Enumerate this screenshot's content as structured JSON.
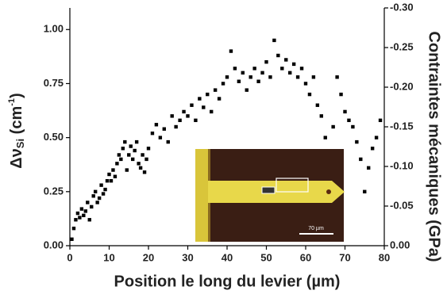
{
  "chart_data": {
    "type": "scatter",
    "x_label": "Position le long du levier (µm)",
    "y_label_parts": [
      "Δν",
      "Si",
      " (cm",
      "-1",
      ")"
    ],
    "y2_label": "Contraintes mécaniques (GPa)",
    "xlim": [
      0,
      80
    ],
    "xticks": [
      0,
      10,
      20,
      30,
      40,
      50,
      60,
      70,
      80
    ],
    "ylim": [
      0,
      1.1
    ],
    "yticks": [
      {
        "value": 0,
        "label": "0.00"
      },
      {
        "value": 0.25,
        "label": "0.25"
      },
      {
        "value": 0.5,
        "label": "0.50"
      },
      {
        "value": 0.75,
        "label": "0.75"
      },
      {
        "value": 1,
        "label": "1.00"
      }
    ],
    "y2lim": [
      0,
      -0.3
    ],
    "y2ticks": [
      {
        "value": 0,
        "label": "0.00"
      },
      {
        "value": -0.05,
        "label": "-0.05"
      },
      {
        "value": -0.1,
        "label": "-0.10"
      },
      {
        "value": -0.15,
        "label": "-0.15"
      },
      {
        "value": -0.2,
        "label": "-0.20"
      },
      {
        "value": -0.25,
        "label": "-0.25"
      },
      {
        "value": -0.3,
        "label": "-0.30"
      }
    ],
    "series": [
      {
        "color": "#000000",
        "x": [
          0.5,
          1,
          1.5,
          2,
          2.5,
          3,
          3.5,
          4,
          4.5,
          5,
          5.5,
          6,
          6.5,
          7,
          7.5,
          8,
          8.5,
          9,
          9.5,
          10,
          10.5,
          11,
          11.5,
          12,
          12.5,
          13,
          13.5,
          14,
          14.5,
          15,
          15.5,
          16,
          16.5,
          17,
          17.5,
          18,
          18.5,
          19,
          19.5,
          20,
          21,
          22,
          23,
          24,
          25,
          26,
          27,
          28,
          29,
          30,
          31,
          32,
          33,
          34,
          35,
          36,
          37,
          38,
          39,
          40,
          41,
          42,
          43,
          44,
          45,
          46,
          47,
          48,
          49,
          50,
          51,
          52,
          53,
          54,
          55,
          56,
          57,
          58,
          59,
          60,
          61,
          62,
          63,
          64,
          65,
          66,
          67,
          68,
          69,
          70,
          71,
          72,
          73,
          74,
          75,
          76,
          77,
          78,
          79
        ],
        "values": [
          0.03,
          0.08,
          0.12,
          0.15,
          0.13,
          0.17,
          0.14,
          0.16,
          0.2,
          0.12,
          0.18,
          0.23,
          0.25,
          0.2,
          0.22,
          0.28,
          0.24,
          0.26,
          0.3,
          0.33,
          0.3,
          0.35,
          0.32,
          0.38,
          0.42,
          0.4,
          0.45,
          0.48,
          0.35,
          0.42,
          0.46,
          0.4,
          0.44,
          0.48,
          0.38,
          0.36,
          0.42,
          0.34,
          0.4,
          0.45,
          0.52,
          0.56,
          0.5,
          0.54,
          0.48,
          0.6,
          0.55,
          0.58,
          0.62,
          0.6,
          0.65,
          0.58,
          0.68,
          0.64,
          0.7,
          0.62,
          0.72,
          0.68,
          0.75,
          0.78,
          0.9,
          0.82,
          0.76,
          0.8,
          0.72,
          0.78,
          0.82,
          0.76,
          0.8,
          0.85,
          0.78,
          0.95,
          0.88,
          0.82,
          0.86,
          0.8,
          0.84,
          0.78,
          0.82,
          0.75,
          0.7,
          0.78,
          0.65,
          0.6,
          0.5,
          0.42,
          0.55,
          0.78,
          0.7,
          0.62,
          0.58,
          0.55,
          0.48,
          0.4,
          0.25,
          0.36,
          0.45,
          0.5,
          0.58
        ]
      }
    ],
    "inset": {
      "scale_label": "70 µm"
    }
  }
}
